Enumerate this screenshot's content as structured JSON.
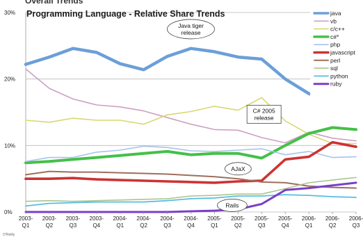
{
  "chart_data": {
    "type": "line",
    "title": "Programming Language - Relative Share Trends",
    "cut_off_heading": "Overall Trends",
    "source_note": "O'Reilly",
    "xlabel": "",
    "ylabel": "",
    "ylim": [
      0,
      30
    ],
    "y_ticks": [
      "0%",
      "10%",
      "20%",
      "30%"
    ],
    "grid": true,
    "legend_position": "top-right",
    "categories": [
      [
        "2003-",
        "Q1"
      ],
      [
        "2003-",
        "Q2"
      ],
      [
        "2003-",
        "Q3"
      ],
      [
        "2003-",
        "Q4"
      ],
      [
        "2004-",
        "Q1"
      ],
      [
        "2004-",
        "Q2"
      ],
      [
        "2004-",
        "Q3"
      ],
      [
        "2004-",
        "Q4"
      ],
      [
        "2005-",
        "Q1"
      ],
      [
        "2005-",
        "Q2"
      ],
      [
        "2005-",
        "Q3"
      ],
      [
        "2005-",
        "Q4"
      ],
      [
        "2006-",
        "Q1"
      ],
      [
        "2006-",
        "Q2"
      ],
      [
        "2006-",
        "Q3"
      ]
    ],
    "series": [
      {
        "name": "java",
        "color": "#6b9fd8",
        "width": 4.5,
        "values": [
          22.2,
          23.3,
          24.6,
          24.0,
          22.3,
          21.4,
          23.4,
          24.6,
          24.1,
          23.3,
          23.0,
          20.0,
          17.8,
          16.8,
          16.4
        ]
      },
      {
        "name": "vb",
        "color": "#cf9fc4",
        "width": 1.6,
        "values": [
          21.5,
          18.6,
          17.0,
          16.1,
          15.8,
          15.2,
          14.2,
          13.2,
          12.4,
          12.3,
          11.2,
          10.4,
          12.0,
          11.1,
          10.7
        ]
      },
      {
        "name": "c/c++",
        "color": "#d8d870",
        "width": 1.6,
        "values": [
          13.8,
          13.5,
          14.1,
          13.8,
          13.8,
          13.2,
          14.6,
          15.1,
          15.9,
          15.3,
          17.2,
          13.7,
          11.7,
          10.3,
          10.3
        ]
      },
      {
        "name": "c#*",
        "color": "#44c048",
        "width": 4,
        "values": [
          7.4,
          7.6,
          7.9,
          8.2,
          8.5,
          8.8,
          9.1,
          8.6,
          8.8,
          8.8,
          8.1,
          10.0,
          11.8,
          12.7,
          12.4
        ]
      },
      {
        "name": "php",
        "color": "#a7c3ea",
        "width": 1.6,
        "values": [
          7.6,
          8.2,
          8.2,
          9.0,
          9.3,
          9.9,
          9.7,
          9.2,
          9.1,
          9.3,
          9.5,
          8.6,
          9.1,
          8.2,
          8.3
        ]
      },
      {
        "name": "javascript",
        "color": "#cc3333",
        "width": 3.6,
        "values": [
          5.0,
          5.0,
          5.1,
          4.9,
          4.8,
          4.7,
          4.6,
          4.5,
          4.4,
          4.6,
          4.7,
          7.9,
          8.3,
          10.5,
          9.8
        ]
      },
      {
        "name": "perl",
        "color": "#9e6e5c",
        "width": 2,
        "values": [
          5.6,
          6.1,
          6.0,
          6.0,
          5.9,
          5.8,
          5.7,
          5.5,
          5.3,
          5.0,
          4.5,
          4.4,
          3.9,
          3.7,
          3.6
        ]
      },
      {
        "name": "sql",
        "color": "#a9c58f",
        "width": 1.6,
        "values": [
          1.6,
          1.7,
          1.6,
          1.7,
          1.8,
          1.9,
          2.0,
          2.4,
          2.5,
          2.7,
          2.7,
          3.5,
          4.4,
          4.8,
          5.2
        ]
      },
      {
        "name": "python",
        "color": "#58bde0",
        "width": 1.8,
        "values": [
          0.9,
          1.3,
          1.4,
          1.5,
          1.5,
          1.5,
          1.7,
          2.0,
          2.1,
          2.4,
          2.4,
          2.6,
          2.5,
          2.3,
          2.2
        ]
      },
      {
        "name": "ruby",
        "color": "#7a3fc8",
        "width": 3,
        "values": [
          0.0,
          0.0,
          0.0,
          0.0,
          0.0,
          0.0,
          0.0,
          0.1,
          0.2,
          0.4,
          1.2,
          3.3,
          3.6,
          4.0,
          4.4
        ]
      }
    ],
    "annotations": [
      {
        "lines": [
          "Java tiger",
          "release"
        ],
        "kind": "ellipse",
        "x_index": 7,
        "y": 27.5
      },
      {
        "lines": [
          "C# 2005",
          "release"
        ],
        "kind": "rect",
        "x_index": 10.1,
        "y": 14.7
      },
      {
        "lines": [
          "AJaX"
        ],
        "kind": "ellipse",
        "x_index": 9.0,
        "y": 6.5
      },
      {
        "lines": [
          "Rails"
        ],
        "kind": "ellipse",
        "x_index": 8.75,
        "y": 1.0
      }
    ]
  }
}
